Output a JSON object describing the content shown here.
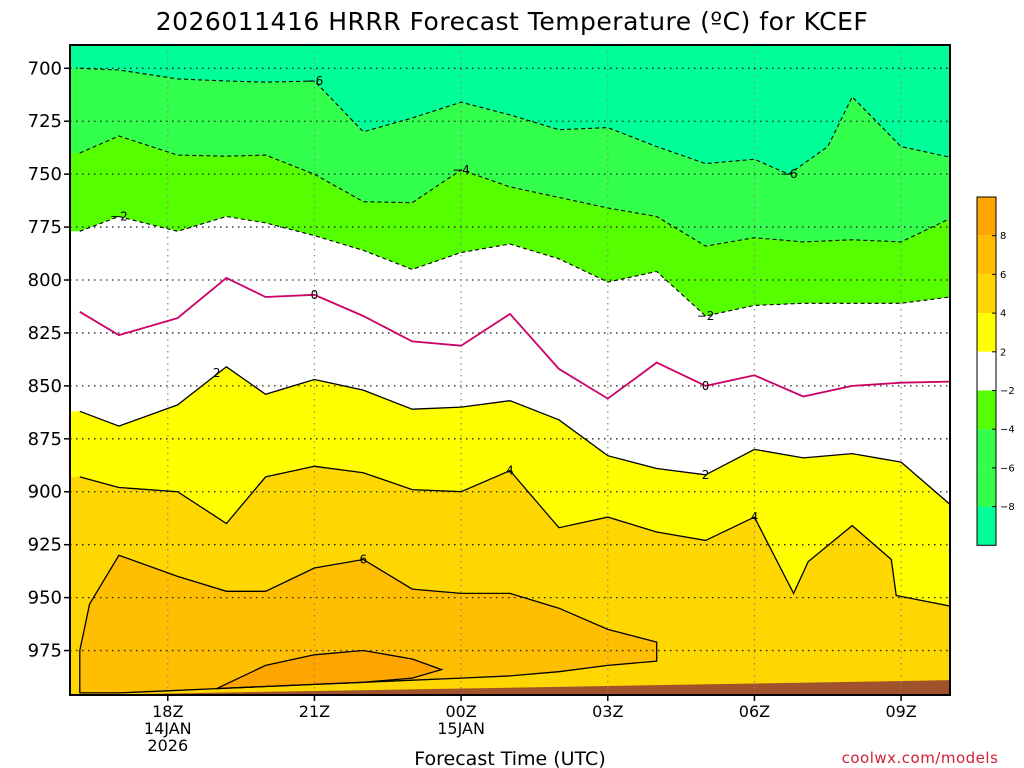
{
  "title": "2026011416 HRRR Forecast Temperature (ºC) for KCEF",
  "credit": "coolwx.com/models",
  "colors": {
    "c_lt_m6": "#00ff99",
    "c_m6_m4": "#33ff4d",
    "c_m4_m2": "#55ff00",
    "c_m2_2": "#ffffff",
    "c_2_4": "#ffff00",
    "c_4_6": "#ffd700",
    "c_6_8": "#ffbf00",
    "c_gt_8": "#ffa500",
    "ground": "#a0522d",
    "zero_line": "#cc0066"
  },
  "chart_data": {
    "type": "contour",
    "title": "2026011416 HRRR Forecast Temperature (ºC) for KCEF",
    "xlabel": "Forecast Time (UTC)",
    "ylabel": "",
    "variable": "Temperature (°C)",
    "x_hours_utc_start": "2026-01-14 16Z",
    "x_range_hours": [
      16,
      34
    ],
    "x_ticks": [
      {
        "hour": 18,
        "label": "18Z",
        "date": "14JAN",
        "year": "2026"
      },
      {
        "hour": 21,
        "label": "21Z",
        "date": "",
        "year": ""
      },
      {
        "hour": 24,
        "label": "00Z",
        "date": "15JAN",
        "year": ""
      },
      {
        "hour": 27,
        "label": "03Z",
        "date": "",
        "year": ""
      },
      {
        "hour": 30,
        "label": "06Z",
        "date": "",
        "year": ""
      },
      {
        "hour": 33,
        "label": "09Z",
        "date": "",
        "year": ""
      }
    ],
    "y_ticks": [
      700,
      725,
      750,
      775,
      800,
      825,
      850,
      875,
      900,
      925,
      950,
      975
    ],
    "y_range_hpa": [
      689,
      996
    ],
    "grid": true,
    "colorbar": {
      "placement": "right",
      "ticks": [
        "8",
        "6",
        "4",
        "2",
        "−2",
        "−4",
        "−6",
        "−8"
      ]
    },
    "contours": [
      {
        "level": "-6",
        "points": [
          [
            16.2,
            700
          ],
          [
            17.0,
            700.8
          ],
          [
            18.2,
            705
          ],
          [
            19.2,
            706
          ],
          [
            20.0,
            706.5
          ],
          [
            21.0,
            706
          ],
          [
            22.0,
            730
          ],
          [
            23.0,
            723.5
          ],
          [
            24.0,
            716
          ],
          [
            25.0,
            722
          ],
          [
            26.0,
            729
          ],
          [
            27.0,
            728
          ],
          [
            28.0,
            737
          ],
          [
            29.0,
            745
          ],
          [
            30.0,
            743
          ],
          [
            30.7,
            750
          ],
          [
            31.5,
            737
          ],
          [
            32.0,
            713.5
          ],
          [
            33.0,
            737
          ],
          [
            34.0,
            742
          ]
        ]
      },
      {
        "level": "-4",
        "points": [
          [
            16.2,
            740
          ],
          [
            17.0,
            732
          ],
          [
            18.2,
            741
          ],
          [
            19.2,
            741.5
          ],
          [
            20.0,
            741
          ],
          [
            21.0,
            750
          ],
          [
            22.0,
            763
          ],
          [
            23.0,
            763.5
          ],
          [
            24.0,
            748
          ],
          [
            25.0,
            756
          ],
          [
            26.0,
            761
          ],
          [
            27.0,
            766
          ],
          [
            28.0,
            770
          ],
          [
            29.0,
            784
          ],
          [
            30.0,
            780
          ],
          [
            31.0,
            782
          ],
          [
            32.0,
            781
          ],
          [
            33.0,
            782
          ],
          [
            34.0,
            771
          ]
        ]
      },
      {
        "level": "-2",
        "points": [
          [
            16.2,
            777
          ],
          [
            17.0,
            770
          ],
          [
            18.2,
            777
          ],
          [
            19.2,
            770
          ],
          [
            20.0,
            773
          ],
          [
            21.0,
            779
          ],
          [
            22.0,
            786
          ],
          [
            23.0,
            795
          ],
          [
            24.0,
            787
          ],
          [
            25.0,
            783
          ],
          [
            26.0,
            790
          ],
          [
            27.0,
            801
          ],
          [
            28.0,
            796
          ],
          [
            29.0,
            817
          ],
          [
            30.0,
            812
          ],
          [
            31.0,
            811
          ],
          [
            32.0,
            811
          ],
          [
            33.0,
            811
          ],
          [
            34.0,
            808
          ]
        ]
      },
      {
        "level": "0",
        "points": [
          [
            16.2,
            815
          ],
          [
            17.0,
            826
          ],
          [
            18.2,
            818
          ],
          [
            19.2,
            799
          ],
          [
            20.0,
            808
          ],
          [
            21.0,
            807
          ],
          [
            22.0,
            817
          ],
          [
            23.0,
            829
          ],
          [
            24.0,
            831
          ],
          [
            25.0,
            816
          ],
          [
            26.0,
            842
          ],
          [
            27.0,
            856
          ],
          [
            28.0,
            839
          ],
          [
            29.0,
            850
          ],
          [
            30.0,
            845
          ],
          [
            31.0,
            855
          ],
          [
            32.0,
            850
          ],
          [
            33.0,
            848.5
          ],
          [
            34.0,
            848
          ]
        ]
      },
      {
        "level": "2",
        "points": [
          [
            16.2,
            862
          ],
          [
            17.0,
            869
          ],
          [
            18.2,
            859
          ],
          [
            19.2,
            841
          ],
          [
            20.0,
            854
          ],
          [
            21.0,
            847
          ],
          [
            22.0,
            852
          ],
          [
            23.0,
            861
          ],
          [
            24.0,
            860
          ],
          [
            25.0,
            857
          ],
          [
            26.0,
            866
          ],
          [
            27.0,
            883
          ],
          [
            28.0,
            889
          ],
          [
            29.0,
            892
          ],
          [
            30.0,
            880
          ],
          [
            31.0,
            884
          ],
          [
            32.0,
            882
          ],
          [
            33.0,
            886
          ],
          [
            34.0,
            906
          ]
        ]
      },
      {
        "level": "4",
        "points": [
          [
            16.2,
            893
          ],
          [
            17.0,
            898
          ],
          [
            18.2,
            900
          ],
          [
            19.2,
            915
          ],
          [
            20.0,
            893
          ],
          [
            21.0,
            888
          ],
          [
            22.0,
            891
          ],
          [
            23.0,
            899
          ],
          [
            24.0,
            900
          ],
          [
            25.0,
            890
          ],
          [
            26.0,
            917
          ],
          [
            27.0,
            912
          ],
          [
            28.0,
            919
          ],
          [
            29.0,
            923
          ],
          [
            30.0,
            912
          ],
          [
            30.8,
            948
          ],
          [
            31.1,
            933
          ],
          [
            32.0,
            916
          ],
          [
            32.8,
            932
          ],
          [
            32.9,
            949
          ],
          [
            34.0,
            954
          ]
        ]
      },
      {
        "level": "6",
        "points": [
          [
            16.2,
            975
          ],
          [
            16.4,
            953
          ],
          [
            17.0,
            930
          ],
          [
            18.2,
            940
          ],
          [
            19.2,
            947
          ],
          [
            20.0,
            947
          ],
          [
            21.0,
            936
          ],
          [
            22.0,
            932
          ],
          [
            23.0,
            946
          ],
          [
            24.0,
            948
          ],
          [
            25.0,
            948
          ],
          [
            26.0,
            955
          ],
          [
            27.0,
            965
          ],
          [
            28.0,
            971
          ],
          [
            28.0,
            980
          ],
          [
            27.0,
            982
          ],
          [
            26.0,
            985
          ],
          [
            25.0,
            987
          ],
          [
            24.0,
            988
          ],
          [
            23.0,
            989
          ],
          [
            22.0,
            990
          ],
          [
            21.0,
            991
          ],
          [
            20.0,
            992
          ],
          [
            19.0,
            993
          ],
          [
            18.0,
            994
          ],
          [
            17.0,
            995
          ],
          [
            16.2,
            995
          ]
        ]
      },
      {
        "level": "8",
        "points": [
          [
            19.0,
            993
          ],
          [
            20.0,
            982
          ],
          [
            21.0,
            977
          ],
          [
            22.0,
            975
          ],
          [
            23.0,
            979
          ],
          [
            23.6,
            984
          ],
          [
            23.0,
            988
          ],
          [
            22.0,
            990
          ],
          [
            21.0,
            991
          ],
          [
            20.0,
            992
          ]
        ]
      }
    ],
    "ground_pressure_hpa": [
      [
        16.2,
        996
      ],
      [
        34.0,
        989
      ]
    ]
  }
}
